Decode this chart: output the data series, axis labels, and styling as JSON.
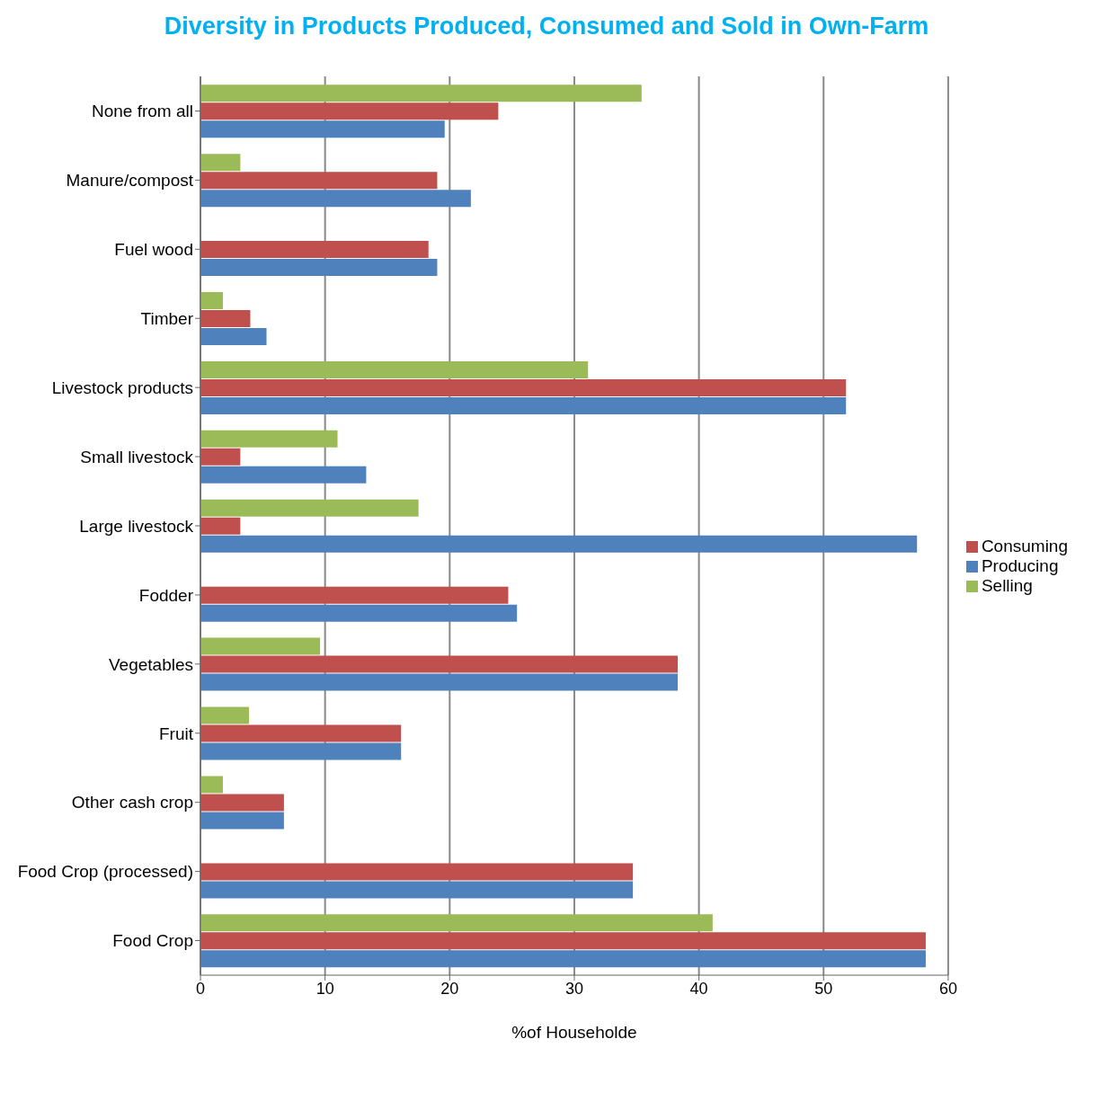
{
  "chart_data": {
    "type": "bar",
    "orientation": "horizontal",
    "title": "Diversity in Products Produced, Consumed and Sold in Own-Farm",
    "xlabel": "%of Householde",
    "categories": [
      "None from all",
      "Manure/compost",
      "Fuel wood",
      "Timber",
      "Livestock products",
      "Small livestock",
      "Large livestock",
      "Fodder",
      "Vegetables",
      "Fruit",
      "Other cash crop",
      "Food Crop (processed)",
      "Food Crop"
    ],
    "series": [
      {
        "name": "Selling",
        "color": "#9bbb59",
        "values": [
          35.4,
          3.2,
          0,
          1.8,
          31.1,
          11,
          17.5,
          0,
          9.6,
          3.9,
          1.8,
          0,
          41.1
        ]
      },
      {
        "name": "Consuming",
        "color": "#c0504d",
        "values": [
          23.9,
          19,
          18.3,
          4,
          51.8,
          3.2,
          3.2,
          24.7,
          38.3,
          16.1,
          6.7,
          34.7,
          58.2
        ]
      },
      {
        "name": "Producing",
        "color": "#4f81bd",
        "values": [
          19.6,
          21.7,
          19,
          5.3,
          51.8,
          13.3,
          57.5,
          25.4,
          38.3,
          16.1,
          6.7,
          34.7,
          58.2
        ]
      }
    ],
    "xlim": [
      0,
      60
    ],
    "xticks": [
      0,
      10,
      20,
      30,
      40,
      50,
      60
    ],
    "grid": "x",
    "legend": "right"
  }
}
